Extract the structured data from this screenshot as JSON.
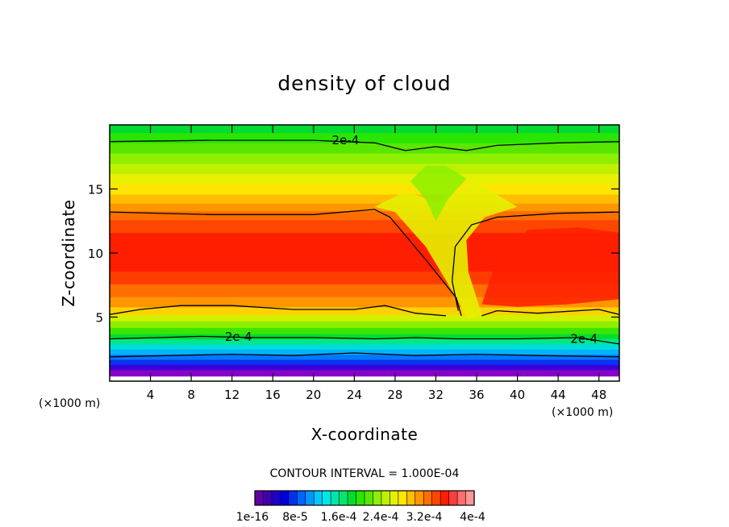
{
  "chart_data": {
    "type": "heatmap",
    "title": "density of cloud",
    "xlabel": "X-coordinate",
    "ylabel": "Z-coordinate",
    "x_unit": "(×1000 m)",
    "x_range": [
      0,
      50
    ],
    "y_range": [
      0,
      20
    ],
    "x_ticks": [
      4,
      8,
      12,
      16,
      20,
      24,
      28,
      32,
      36,
      40,
      44,
      48
    ],
    "y_ticks": [
      5,
      10,
      15
    ],
    "contour_interval_text": "CONTOUR INTERVAL = 1.000E-04",
    "contour_label": "2e-4",
    "contours": [
      {
        "label": "2e-4",
        "points": [
          [
            0,
            18.7
          ],
          [
            10,
            18.8
          ],
          [
            20,
            18.8
          ],
          [
            26,
            18.6
          ],
          [
            29,
            18.0
          ],
          [
            32,
            18.3
          ],
          [
            35,
            18.0
          ],
          [
            38,
            18.4
          ],
          [
            44,
            18.6
          ],
          [
            50,
            18.7
          ]
        ]
      },
      {
        "label": "",
        "points": [
          [
            0,
            13.2
          ],
          [
            10,
            13.0
          ],
          [
            20,
            13.0
          ],
          [
            26,
            13.4
          ],
          [
            27.5,
            12.8
          ],
          [
            31,
            9.5
          ],
          [
            34,
            6.5
          ],
          [
            34.5,
            5.1
          ]
        ]
      },
      {
        "label": "",
        "points": [
          [
            34.2,
            5.5
          ],
          [
            33.6,
            7.8
          ],
          [
            33.9,
            10.5
          ],
          [
            35.5,
            12.2
          ],
          [
            38,
            12.8
          ],
          [
            44,
            13.1
          ],
          [
            50,
            13.2
          ]
        ]
      },
      {
        "label": "",
        "points": [
          [
            0,
            5.2
          ],
          [
            3,
            5.6
          ],
          [
            7,
            5.9
          ],
          [
            12,
            5.9
          ],
          [
            18,
            5.6
          ],
          [
            24,
            5.6
          ],
          [
            27,
            5.9
          ],
          [
            30,
            5.3
          ],
          [
            33,
            5.1
          ]
        ]
      },
      {
        "label": "",
        "points": [
          [
            36.5,
            5.1
          ],
          [
            38,
            5.5
          ],
          [
            42,
            5.3
          ],
          [
            48,
            5.6
          ],
          [
            50,
            5.2
          ]
        ]
      },
      {
        "label": "2e-4",
        "points": [
          [
            0,
            3.3
          ],
          [
            5,
            3.4
          ],
          [
            9,
            3.5
          ],
          [
            14,
            3.4
          ],
          [
            20,
            3.4
          ],
          [
            26,
            3.3
          ],
          [
            30,
            3.4
          ],
          [
            34,
            3.3
          ],
          [
            40,
            3.3
          ],
          [
            46,
            3.4
          ],
          [
            50,
            2.9
          ]
        ]
      },
      {
        "label": "",
        "points": [
          [
            0,
            1.9
          ],
          [
            6,
            2.0
          ],
          [
            12,
            2.1
          ],
          [
            18,
            2.0
          ],
          [
            24,
            2.2
          ],
          [
            30,
            2.0
          ],
          [
            36,
            2.1
          ],
          [
            42,
            2.0
          ],
          [
            50,
            1.9
          ]
        ]
      }
    ],
    "colorbar": {
      "tick_labels": [
        "1e-16",
        "8e-5",
        "1.6e-4",
        "2.4e-4",
        "3.2e-4",
        "4e-4"
      ],
      "colors": [
        "#5f009f",
        "#3f00b4",
        "#2000c8",
        "#0000dc",
        "#0030f0",
        "#0064ff",
        "#0096ff",
        "#00c8ff",
        "#00e6e6",
        "#00e6aa",
        "#00e66e",
        "#00dc32",
        "#28e600",
        "#5ae600",
        "#8cf000",
        "#bef000",
        "#e6f000",
        "#ffe600",
        "#ffbe00",
        "#ff9600",
        "#ff6e00",
        "#ff4600",
        "#ff1e00",
        "#ff3c3c",
        "#ff6e6e",
        "#ff9696"
      ]
    }
  }
}
